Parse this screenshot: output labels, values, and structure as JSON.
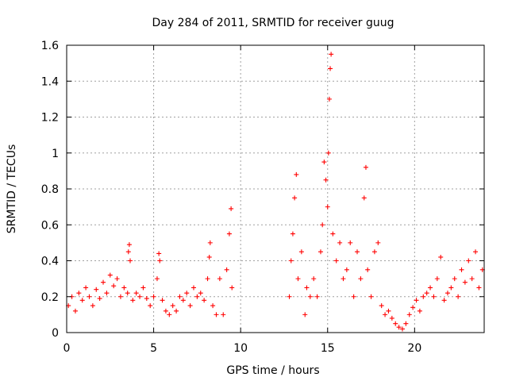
{
  "chart_data": {
    "type": "scatter",
    "title": "Day 284 of 2011, SRMTID for receiver guug",
    "xlabel": "GPS time / hours",
    "ylabel": "SRMTID / TECUs",
    "xlim": [
      0,
      24
    ],
    "ylim": [
      0,
      1.6
    ],
    "xticks": [
      0,
      5,
      10,
      15,
      20
    ],
    "xtick_labels": [
      "0",
      "5",
      "10",
      "15",
      "20"
    ],
    "yticks": [
      0,
      0.2,
      0.4,
      0.6,
      0.8,
      1,
      1.2,
      1.4,
      1.6
    ],
    "ytick_labels": [
      "0",
      "0.2",
      "0.4",
      "0.6",
      "0.8",
      "1",
      "1.2",
      "1.4",
      "1.6"
    ],
    "grid": true,
    "marker": "plus",
    "series": [
      {
        "name": "SRMTID",
        "color": "#ff0000",
        "points": [
          [
            0.1,
            0.15
          ],
          [
            0.3,
            0.2
          ],
          [
            0.5,
            0.12
          ],
          [
            0.7,
            0.22
          ],
          [
            0.9,
            0.18
          ],
          [
            1.1,
            0.25
          ],
          [
            1.3,
            0.2
          ],
          [
            1.5,
            0.15
          ],
          [
            1.7,
            0.24
          ],
          [
            1.9,
            0.19
          ],
          [
            2.1,
            0.28
          ],
          [
            2.3,
            0.22
          ],
          [
            2.5,
            0.32
          ],
          [
            2.7,
            0.26
          ],
          [
            2.9,
            0.3
          ],
          [
            3.1,
            0.2
          ],
          [
            3.3,
            0.25
          ],
          [
            3.5,
            0.22
          ],
          [
            3.55,
            0.45
          ],
          [
            3.6,
            0.49
          ],
          [
            3.65,
            0.4
          ],
          [
            3.8,
            0.18
          ],
          [
            4.0,
            0.22
          ],
          [
            4.2,
            0.2
          ],
          [
            4.4,
            0.25
          ],
          [
            4.6,
            0.19
          ],
          [
            4.8,
            0.15
          ],
          [
            5.0,
            0.2
          ],
          [
            5.2,
            0.3
          ],
          [
            5.3,
            0.44
          ],
          [
            5.35,
            0.4
          ],
          [
            5.5,
            0.18
          ],
          [
            5.7,
            0.12
          ],
          [
            5.9,
            0.1
          ],
          [
            6.1,
            0.15
          ],
          [
            6.3,
            0.12
          ],
          [
            6.5,
            0.2
          ],
          [
            6.7,
            0.18
          ],
          [
            6.9,
            0.22
          ],
          [
            7.1,
            0.15
          ],
          [
            7.3,
            0.25
          ],
          [
            7.5,
            0.2
          ],
          [
            7.7,
            0.22
          ],
          [
            7.9,
            0.18
          ],
          [
            8.1,
            0.3
          ],
          [
            8.2,
            0.42
          ],
          [
            8.25,
            0.5
          ],
          [
            8.4,
            0.15
          ],
          [
            8.6,
            0.1
          ],
          [
            8.8,
            0.3
          ],
          [
            9.0,
            0.1
          ],
          [
            9.2,
            0.35
          ],
          [
            9.35,
            0.55
          ],
          [
            9.45,
            0.69
          ],
          [
            9.5,
            0.25
          ],
          [
            12.8,
            0.2
          ],
          [
            12.9,
            0.4
          ],
          [
            13.0,
            0.55
          ],
          [
            13.1,
            0.75
          ],
          [
            13.2,
            0.88
          ],
          [
            13.3,
            0.3
          ],
          [
            13.5,
            0.45
          ],
          [
            13.7,
            0.1
          ],
          [
            13.8,
            0.25
          ],
          [
            14.0,
            0.2
          ],
          [
            14.2,
            0.3
          ],
          [
            14.4,
            0.2
          ],
          [
            14.6,
            0.45
          ],
          [
            14.7,
            0.6
          ],
          [
            14.8,
            0.95
          ],
          [
            14.9,
            0.85
          ],
          [
            15.0,
            0.7
          ],
          [
            15.05,
            1.0
          ],
          [
            15.1,
            1.3
          ],
          [
            15.15,
            1.47
          ],
          [
            15.2,
            1.55
          ],
          [
            15.3,
            0.55
          ],
          [
            15.5,
            0.4
          ],
          [
            15.7,
            0.5
          ],
          [
            15.9,
            0.3
          ],
          [
            16.1,
            0.35
          ],
          [
            16.3,
            0.5
          ],
          [
            16.5,
            0.2
          ],
          [
            16.7,
            0.45
          ],
          [
            16.9,
            0.3
          ],
          [
            17.1,
            0.75
          ],
          [
            17.2,
            0.92
          ],
          [
            17.3,
            0.35
          ],
          [
            17.5,
            0.2
          ],
          [
            17.7,
            0.45
          ],
          [
            17.9,
            0.5
          ],
          [
            18.1,
            0.15
          ],
          [
            18.3,
            0.1
          ],
          [
            18.5,
            0.12
          ],
          [
            18.7,
            0.08
          ],
          [
            18.9,
            0.05
          ],
          [
            19.1,
            0.03
          ],
          [
            19.3,
            0.02
          ],
          [
            19.5,
            0.05
          ],
          [
            19.7,
            0.1
          ],
          [
            19.9,
            0.14
          ],
          [
            20.1,
            0.18
          ],
          [
            20.3,
            0.12
          ],
          [
            20.5,
            0.2
          ],
          [
            20.7,
            0.22
          ],
          [
            20.9,
            0.25
          ],
          [
            21.1,
            0.2
          ],
          [
            21.3,
            0.3
          ],
          [
            21.5,
            0.42
          ],
          [
            21.7,
            0.18
          ],
          [
            21.9,
            0.22
          ],
          [
            22.1,
            0.25
          ],
          [
            22.3,
            0.3
          ],
          [
            22.5,
            0.2
          ],
          [
            22.7,
            0.35
          ],
          [
            22.9,
            0.28
          ],
          [
            23.1,
            0.4
          ],
          [
            23.3,
            0.3
          ],
          [
            23.5,
            0.45
          ],
          [
            23.7,
            0.25
          ],
          [
            23.9,
            0.35
          ]
        ]
      }
    ]
  }
}
